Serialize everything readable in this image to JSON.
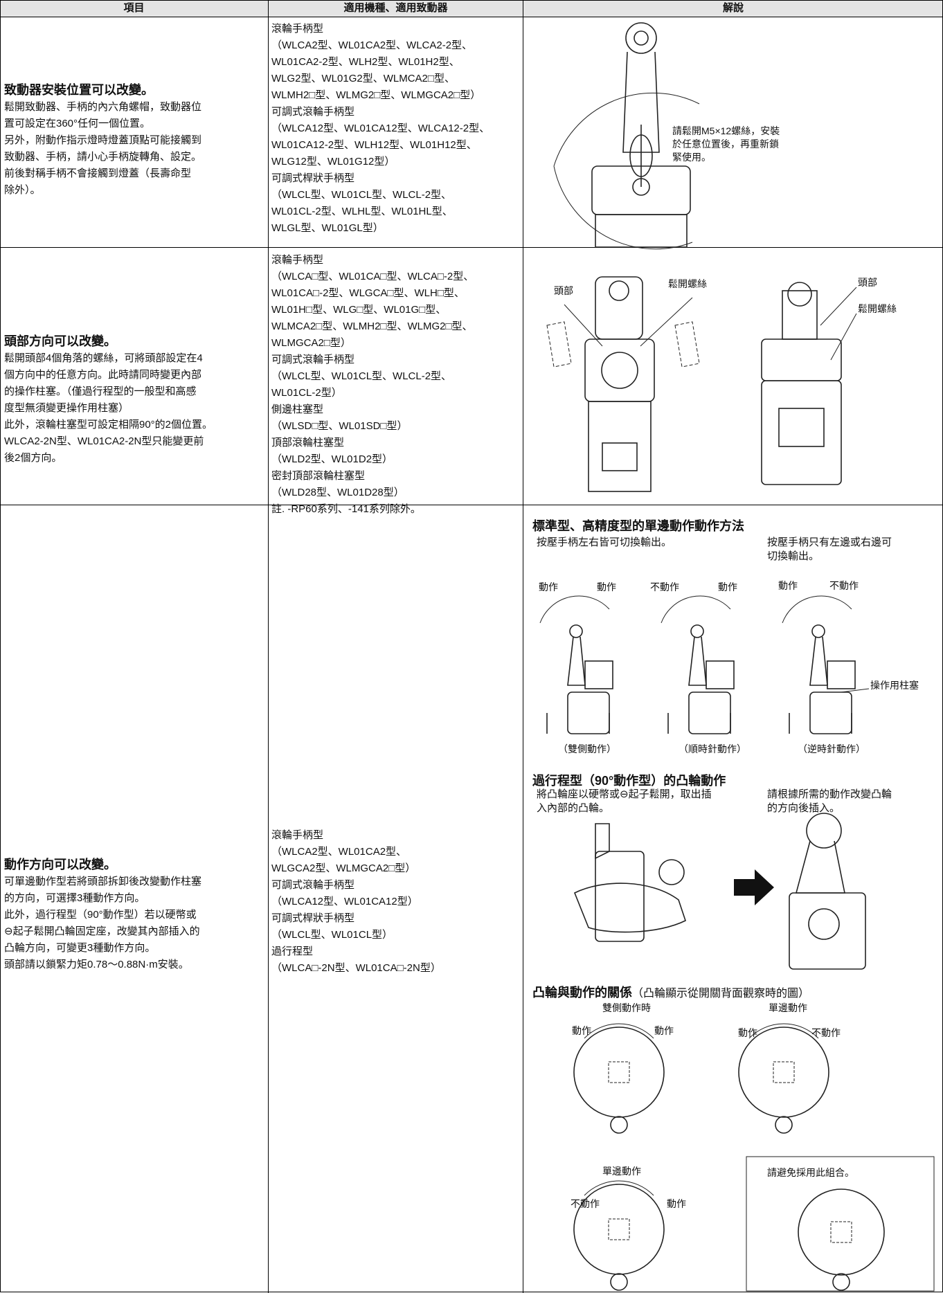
{
  "table": {
    "headers": [
      "項目",
      "適用機種、適用致動器",
      "解說"
    ],
    "rows": [
      {
        "title": "致動器安裝位置可以改變。",
        "description": [
          "鬆開致動器、手柄的內六角螺帽，致動器位",
          "置可設定在360°任何一個位置。",
          "另外，附動作指示燈時燈蓋頂點可能接觸到",
          "致動器、手柄，請小心手柄旋轉角、設定。",
          "前後對稱手柄不會接觸到燈蓋（長壽命型",
          "除外）。"
        ],
        "models": [
          "滾輪手柄型",
          "（WLCA2型、WL01CA2型、WLCA2-2型、",
          "WL01CA2-2型、WLH2型、WL01H2型、",
          "WLG2型、WL01G2型、WLMCA2□型、",
          "WLMH2□型、WLMG2□型、WLMGCA2□型）",
          "可調式滾輪手柄型",
          "（WLCA12型、WL01CA12型、WLCA12-2型、",
          "WL01CA12-2型、WLH12型、WL01H12型、",
          "WLG12型、WL01G12型）",
          "可調式桿狀手柄型",
          "（WLCL型、WL01CL型、WLCL-2型、",
          "WL01CL-2型、WLHL型、WL01HL型、",
          "WLGL型、WL01GL型）"
        ],
        "explanation": {
          "note": [
            "請鬆開M5×12螺絲，安裝",
            "於任意位置後，再重新鎖",
            "緊使用。"
          ]
        }
      },
      {
        "title": "頭部方向可以改變。",
        "description": [
          "鬆開頭部4個角落的螺絲，可將頭部設定在4",
          "個方向中的任意方向。此時請同時變更內部",
          "的操作柱塞。（僅過行程型的一般型和高感",
          "度型無須變更操作用柱塞）",
          "此外，滾輪柱塞型可設定相隔90°的2個位置。",
          "WLCA2-2N型、WL01CA2-2N型只能變更前",
          "後2個方向。"
        ],
        "models": [
          "滾輪手柄型",
          "（WLCA□型、WL01CA□型、WLCA□-2型、",
          "WL01CA□-2型、WLGCA□型、WLH□型、",
          "WL01H□型、WLG□型、WL01G□型、",
          "WLMCA2□型、WLMH2□型、WLMG2□型、",
          "WLMGCA2□型）",
          "可調式滾輪手柄型",
          "（WLCL型、WL01CL型、WLCL-2型、",
          "WL01CL-2型）",
          "側邊柱塞型",
          "（WLSD□型、WL01SD□型）",
          "頂部滾輪柱塞型",
          "（WLD2型、WL01D2型）",
          "密封頂部滾輪柱塞型",
          "（WLD28型、WL01D28型）",
          "註. -RP60系列、-141系列除外。"
        ],
        "explanation": {
          "labels": [
            "頭部",
            "鬆開螺絲",
            "頭部",
            "鬆開螺絲"
          ]
        }
      },
      {
        "title": "動作方向可以改變。",
        "description": [
          "可單邊動作型若將頭部拆卸後改變動作柱塞",
          "的方向，可選擇3種動作方向。",
          "此外，過行程型（90°動作型）若以硬幣或",
          "⊖起子鬆開凸輪固定座，改變其內部插入的",
          "凸輪方向，可變更3種動作方向。",
          "頭部請以鎖緊力矩0.78～0.88N·m安裝。"
        ],
        "models": [
          "滾輪手柄型",
          "（WLCA2型、WL01CA2型、",
          "WLGCA2型、WLMGCA2□型）",
          "可調式滾輪手柄型",
          "（WLCA12型、WL01CA12型）",
          "可調式桿狀手柄型",
          "（WLCL型、WL01CL型）",
          "過行程型",
          "（WLCA□-2N型、WL01CA□-2N型）"
        ],
        "explanation": {
          "sections": [
            {
              "heading": "標準型、高精度型的單邊動作動作方法",
              "notes": [
                [
                  "按壓手柄左右皆可切換輸出。"
                ],
                [
                  "按壓手柄只有左邊或右邊可",
                  "切換輸出。"
                ]
              ],
              "labels": [
                "動作",
                "動作",
                "不動作",
                "動作",
                "動作",
                "不動作",
                "操作用柱塞"
              ],
              "captions": [
                "（雙側動作）",
                "（順時針動作）",
                "（逆時針動作）"
              ]
            },
            {
              "heading": "過行程型（90°動作型）的凸輪動作",
              "notes": [
                [
                  "將凸輪座以硬幣或⊖起子鬆開，取出插",
                  "入內部的凸輪。"
                ],
                [
                  "請根據所需的動作改變凸輪",
                  "的方向後插入。"
                ]
              ]
            },
            {
              "heading": "凸輪與動作的關係",
              "subheading": "（凸輪顯示從開關背面觀察時的圖）",
              "labels": [
                "雙側動作時",
                "動作",
                "動作",
                "單邊動作",
                "動作",
                "不動作",
                "單邊動作",
                "不動作",
                "動作",
                "請避免採用此組合。"
              ]
            }
          ]
        }
      }
    ]
  }
}
